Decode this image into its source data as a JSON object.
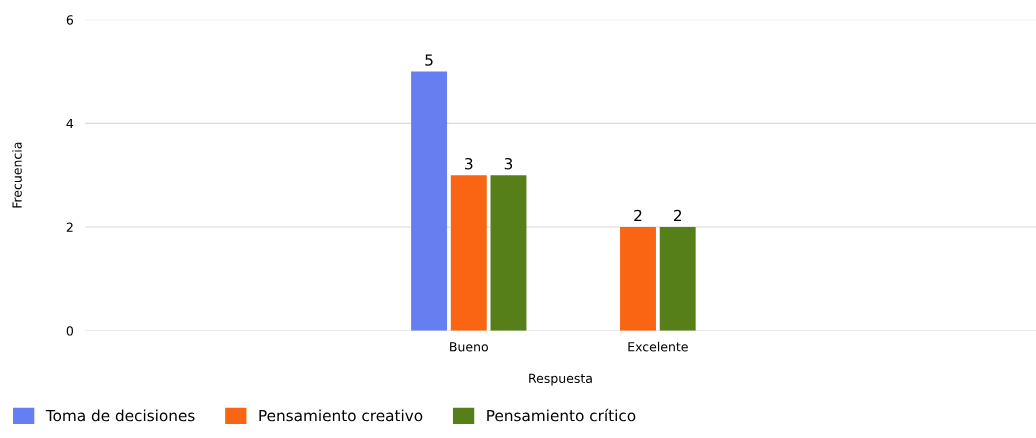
{
  "chart_data": {
    "type": "bar",
    "xlabel": "Respuesta",
    "ylabel": "Frecuencia",
    "categories": [
      "Bueno",
      "Excelente"
    ],
    "series": [
      {
        "name": "Toma de decisiones",
        "color": "#667eef",
        "values": [
          5,
          null
        ]
      },
      {
        "name": "Pensamiento creativo",
        "color": "#f96513",
        "values": [
          3,
          2
        ]
      },
      {
        "name": "Pensamiento crítico",
        "color": "#567f1a",
        "values": [
          3,
          2
        ]
      }
    ],
    "ylim": [
      0,
      6
    ],
    "yticks": [
      0,
      2,
      4,
      6
    ],
    "grid": "y",
    "legend": "bottom left",
    "data_labels": true
  }
}
